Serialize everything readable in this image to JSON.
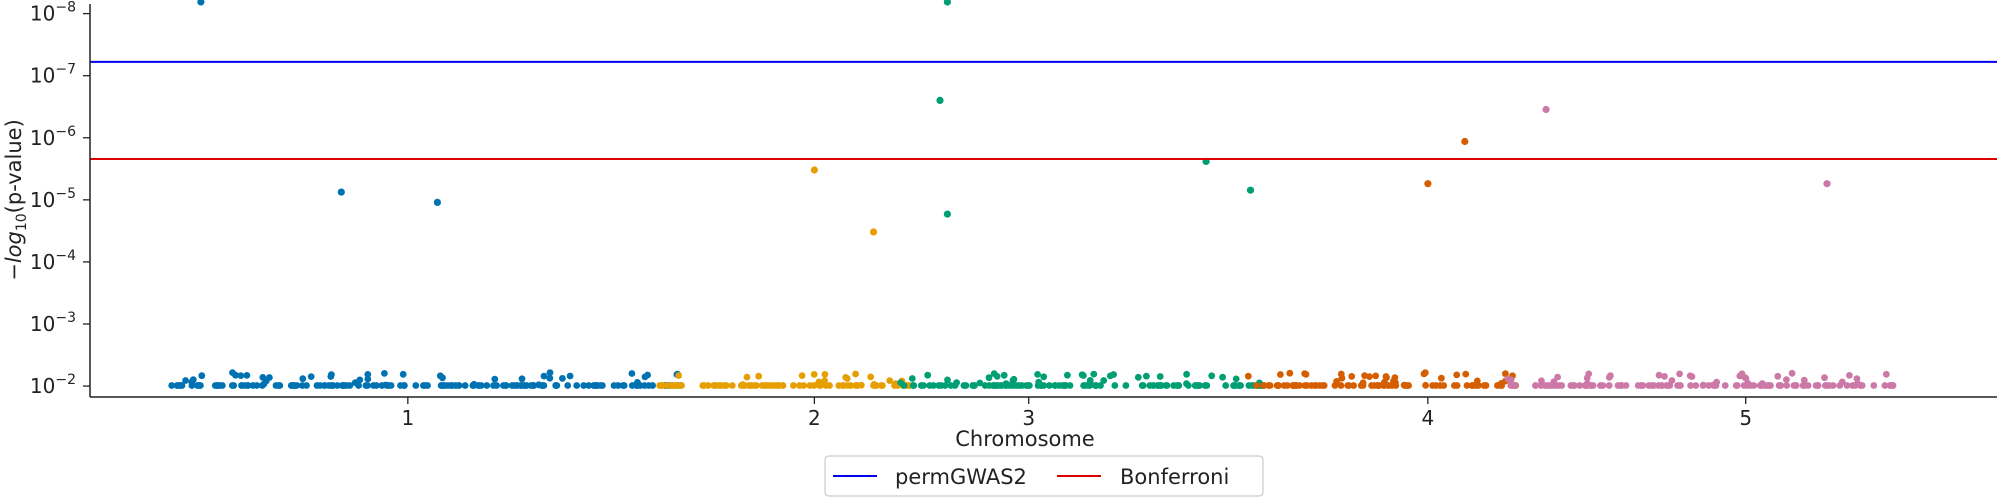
{
  "chart_data": {
    "type": "scatter",
    "title": "",
    "xlabel": "Chromosome",
    "ylabel": "−log10(p-value)",
    "y_scale": "log",
    "y_inverted": true,
    "ylim": [
      0.015,
      7e-09
    ],
    "xlim": [
      0,
      129000000
    ],
    "grid": false,
    "legend_position": "bottom-center",
    "x_ticks": [
      {
        "label": "1",
        "value": 21500000
      },
      {
        "label": "2",
        "value": 49000000
      },
      {
        "label": "3",
        "value": 63500000
      },
      {
        "label": "4",
        "value": 90500000
      },
      {
        "label": "5",
        "value": 112000000
      }
    ],
    "y_ticks": [
      {
        "label": "10",
        "exp": "−8",
        "value": 1e-08
      },
      {
        "label": "10",
        "exp": "−7",
        "value": 1e-07
      },
      {
        "label": "10",
        "exp": "−6",
        "value": 1e-06
      },
      {
        "label": "10",
        "exp": "−5",
        "value": 1e-05
      },
      {
        "label": "10",
        "exp": "−4",
        "value": 0.0001
      },
      {
        "label": "10",
        "exp": "−3",
        "value": 0.001
      },
      {
        "label": "10",
        "exp": "−2",
        "value": 0.01
      }
    ],
    "thresholds": [
      {
        "name": "permGWAS2",
        "value": 6e-08,
        "color": "#0000ee"
      },
      {
        "name": "Bonferroni",
        "value": 2.2e-06,
        "color": "#dd0000"
      }
    ],
    "chromosomes": [
      {
        "name": "1",
        "start": 5500000,
        "end": 40000000,
        "color": "#0072b2"
      },
      {
        "name": "2",
        "start": 38500000,
        "end": 55500000,
        "color": "#e69f00"
      },
      {
        "name": "3",
        "start": 54500000,
        "end": 79500000,
        "color": "#009e73"
      },
      {
        "name": "4",
        "start": 78000000,
        "end": 96500000,
        "color": "#d55e00"
      },
      {
        "name": "5",
        "start": 95500000,
        "end": 122000000,
        "color": "#cc79a7"
      }
    ],
    "highlights": [
      {
        "chromosome": "1",
        "x": 7500000,
        "p": 6.5e-09
      },
      {
        "chromosome": "1",
        "x": 17000000,
        "p": 7.5e-06
      },
      {
        "chromosome": "1",
        "x": 23500000,
        "p": 1.1e-05
      },
      {
        "chromosome": "2",
        "x": 49000000,
        "p": 3.3e-06
      },
      {
        "chromosome": "2",
        "x": 53000000,
        "p": 3.3e-05
      },
      {
        "chromosome": "3",
        "x": 58000000,
        "p": 6.5e-09
      },
      {
        "chromosome": "3",
        "x": 57500000,
        "p": 2.5e-07
      },
      {
        "chromosome": "3",
        "x": 58000000,
        "p": 1.7e-05
      },
      {
        "chromosome": "3",
        "x": 75500000,
        "p": 2.4e-06
      },
      {
        "chromosome": "3",
        "x": 78500000,
        "p": 7e-06
      },
      {
        "chromosome": "4",
        "x": 93000000,
        "p": 1.15e-06
      },
      {
        "chromosome": "4",
        "x": 90500000,
        "p": 5.5e-06
      },
      {
        "chromosome": "5",
        "x": 98500000,
        "p": 3.5e-07
      },
      {
        "chromosome": "5",
        "x": 117500000,
        "p": 5.5e-06
      }
    ]
  }
}
